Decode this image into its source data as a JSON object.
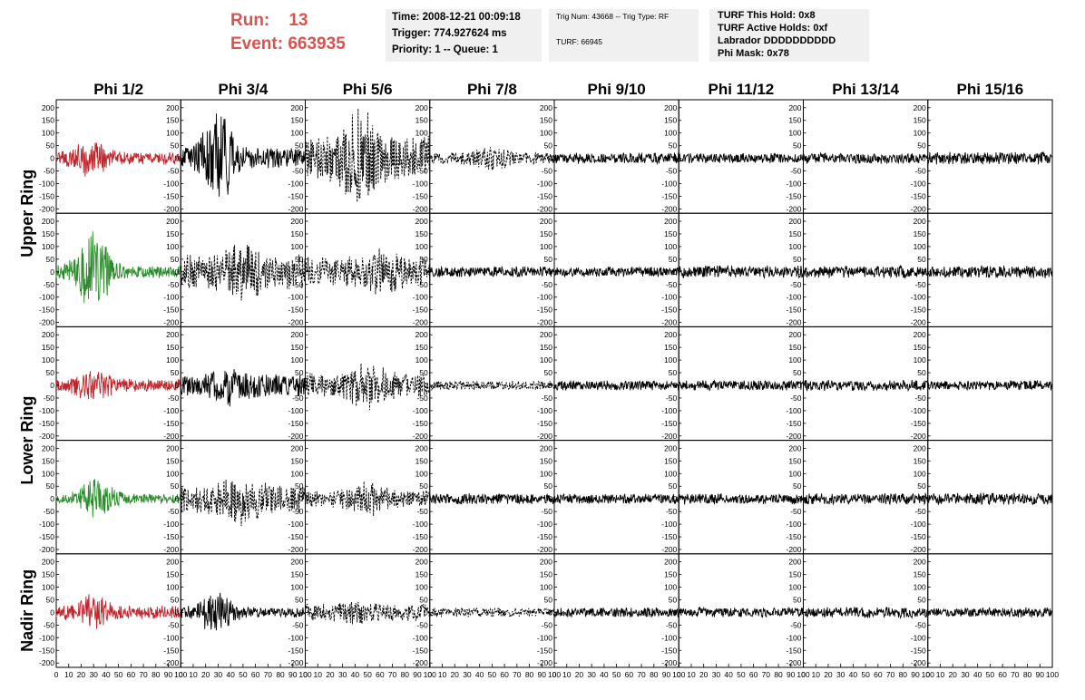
{
  "header": {
    "run_label": "Run:",
    "run_value": "13",
    "event_label": "Event:",
    "event_value": "663935",
    "time": "Time: 2008-12-21 00:09:18",
    "trigger": "Trigger: 774.927624 ms",
    "priority": "Priority: 1 -- Queue: 1",
    "trig_num": "Trig Num: 43668 -- Trig Type: RF",
    "turf": "TURF: 66945",
    "turf_hold": "TURF This Hold: 0x8",
    "turf_active": "TURF Active Holds: 0xf",
    "labrador": "Labrador DDDDDDDDDD",
    "phi_mask": "Phi Mask: 0x78",
    "accent_color": "#d9534f"
  },
  "chart_data": {
    "type": "line",
    "columns": [
      "Phi 1/2",
      "Phi 3/4",
      "Phi 5/6",
      "Phi 7/8",
      "Phi 9/10",
      "Phi 11/12",
      "Phi 13/14",
      "Phi 15/16"
    ],
    "ring_labels": [
      "Upper Ring",
      "Lower Ring",
      "Nadir Ring"
    ],
    "ylim": [
      -210,
      210
    ],
    "xlim": [
      0,
      100
    ],
    "yticks": [
      -200,
      -150,
      -100,
      -50,
      0,
      50,
      100,
      150,
      200
    ],
    "xticks": [
      0,
      10,
      20,
      30,
      40,
      50,
      60,
      70,
      80,
      90,
      100
    ],
    "colors": {
      "red": "#c0272d",
      "green": "#2a8c2a",
      "black": "#000000"
    },
    "panels": [
      [
        {
          "color": "red",
          "style": "solid",
          "amp": 25,
          "burst": 60,
          "center": 28
        },
        {
          "color": "black",
          "style": "solid",
          "amp": 40,
          "burst": 150,
          "center": 30
        },
        {
          "color": "black",
          "style": "dashed",
          "amp": 90,
          "burst": 120,
          "center": 45
        },
        {
          "color": "black",
          "style": "dashed",
          "amp": 25,
          "burst": 30,
          "center": 50
        },
        {
          "color": "black",
          "style": "solid",
          "amp": 22,
          "burst": 0,
          "center": 50
        },
        {
          "color": "black",
          "style": "solid",
          "amp": 20,
          "burst": 0,
          "center": 50
        },
        {
          "color": "black",
          "style": "solid",
          "amp": 22,
          "burst": 0,
          "center": 50
        },
        {
          "color": "black",
          "style": "solid",
          "amp": 25,
          "burst": 0,
          "center": 50
        }
      ],
      [
        {
          "color": "green",
          "style": "solid",
          "amp": 25,
          "burst": 140,
          "center": 30
        },
        {
          "color": "black",
          "style": "dashed",
          "amp": 70,
          "burst": 50,
          "center": 50
        },
        {
          "color": "black",
          "style": "dashed",
          "amp": 60,
          "burst": 40,
          "center": 60
        },
        {
          "color": "black",
          "style": "solid",
          "amp": 22,
          "burst": 0,
          "center": 50
        },
        {
          "color": "black",
          "style": "solid",
          "amp": 20,
          "burst": 0,
          "center": 50
        },
        {
          "color": "black",
          "style": "solid",
          "amp": 25,
          "burst": 0,
          "center": 50
        },
        {
          "color": "black",
          "style": "solid",
          "amp": 24,
          "burst": 0,
          "center": 50
        },
        {
          "color": "black",
          "style": "solid",
          "amp": 25,
          "burst": 0,
          "center": 50
        }
      ],
      [
        {
          "color": "red",
          "style": "solid",
          "amp": 25,
          "burst": 50,
          "center": 30
        },
        {
          "color": "black",
          "style": "solid",
          "amp": 45,
          "burst": 40,
          "center": 40
        },
        {
          "color": "black",
          "style": "dashed",
          "amp": 50,
          "burst": 50,
          "center": 50
        },
        {
          "color": "black",
          "style": "dashed",
          "amp": 18,
          "burst": 0,
          "center": 50
        },
        {
          "color": "black",
          "style": "solid",
          "amp": 20,
          "burst": 0,
          "center": 50
        },
        {
          "color": "black",
          "style": "solid",
          "amp": 20,
          "burst": 0,
          "center": 50
        },
        {
          "color": "black",
          "style": "solid",
          "amp": 22,
          "burst": 0,
          "center": 50
        },
        {
          "color": "black",
          "style": "solid",
          "amp": 20,
          "burst": 0,
          "center": 50
        }
      ],
      [
        {
          "color": "green",
          "style": "solid",
          "amp": 20,
          "burst": 70,
          "center": 33
        },
        {
          "color": "black",
          "style": "dashed",
          "amp": 60,
          "burst": 50,
          "center": 50
        },
        {
          "color": "black",
          "style": "dashed",
          "amp": 35,
          "burst": 40,
          "center": 50
        },
        {
          "color": "black",
          "style": "solid",
          "amp": 22,
          "burst": 0,
          "center": 50
        },
        {
          "color": "black",
          "style": "solid",
          "amp": 20,
          "burst": 0,
          "center": 50
        },
        {
          "color": "black",
          "style": "solid",
          "amp": 22,
          "burst": 0,
          "center": 50
        },
        {
          "color": "black",
          "style": "solid",
          "amp": 22,
          "burst": 0,
          "center": 50
        },
        {
          "color": "black",
          "style": "solid",
          "amp": 24,
          "burst": 0,
          "center": 50
        }
      ],
      [
        {
          "color": "red",
          "style": "solid",
          "amp": 28,
          "burst": 50,
          "center": 30
        },
        {
          "color": "black",
          "style": "solid",
          "amp": 20,
          "burst": 70,
          "center": 28
        },
        {
          "color": "black",
          "style": "dashed",
          "amp": 35,
          "burst": 15,
          "center": 40
        },
        {
          "color": "black",
          "style": "dashed",
          "amp": 18,
          "burst": 0,
          "center": 50
        },
        {
          "color": "black",
          "style": "solid",
          "amp": 20,
          "burst": 0,
          "center": 50
        },
        {
          "color": "black",
          "style": "solid",
          "amp": 20,
          "burst": 0,
          "center": 50
        },
        {
          "color": "black",
          "style": "solid",
          "amp": 22,
          "burst": 0,
          "center": 50
        },
        {
          "color": "black",
          "style": "solid",
          "amp": 20,
          "burst": 0,
          "center": 50
        }
      ]
    ]
  }
}
